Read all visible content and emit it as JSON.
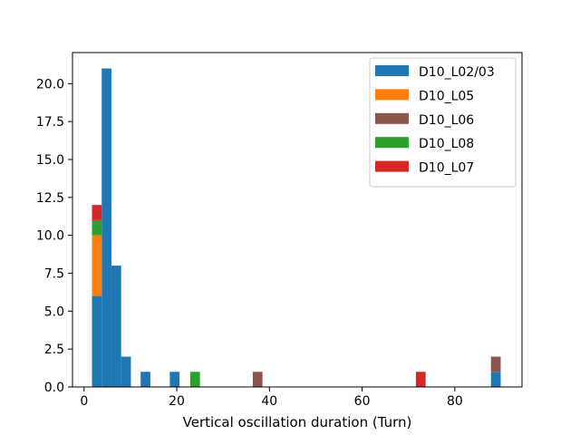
{
  "chart_data": {
    "type": "bar",
    "stacked": true,
    "title": "",
    "xlabel": "Vertical oscillation duration (Turn)",
    "ylabel": "",
    "xlim": [
      -2.5,
      94.5
    ],
    "ylim": [
      0,
      22.05
    ],
    "xticks": [
      0,
      20,
      40,
      60,
      80
    ],
    "xtick_labels": [
      "0",
      "20",
      "40",
      "60",
      "80"
    ],
    "yticks": [
      0,
      2.5,
      5,
      7.5,
      10,
      12.5,
      15,
      17.5,
      20
    ],
    "ytick_labels": [
      "0.0",
      "2.5",
      "5.0",
      "7.5",
      "10.0",
      "12.5",
      "15.0",
      "17.5",
      "20.0"
    ],
    "bin_width": 2.1,
    "grid": false,
    "legend_position": "top-right",
    "series": [
      {
        "name": "D10_L02/03",
        "color": "#1f77b4",
        "bins": [
          {
            "x0": 1.7,
            "count": 6
          },
          {
            "x0": 3.8,
            "count": 21
          },
          {
            "x0": 5.9,
            "count": 8
          },
          {
            "x0": 8.0,
            "count": 2
          },
          {
            "x0": 12.2,
            "count": 1
          },
          {
            "x0": 18.5,
            "count": 1
          },
          {
            "x0": 87.8,
            "count": 1
          }
        ]
      },
      {
        "name": "D10_L05",
        "color": "#ff7f0e",
        "bins": [
          {
            "x0": 1.7,
            "count": 4
          }
        ]
      },
      {
        "name": "D10_L06",
        "color": "#8c564b",
        "bins": [
          {
            "x0": 36.4,
            "count": 1
          },
          {
            "x0": 87.8,
            "count": 1
          }
        ]
      },
      {
        "name": "D10_L08",
        "color": "#2ca02c",
        "bins": [
          {
            "x0": 1.7,
            "count": 1
          },
          {
            "x0": 22.9,
            "count": 1
          }
        ]
      },
      {
        "name": "D10_L07",
        "color": "#d62728",
        "bins": [
          {
            "x0": 1.7,
            "count": 1
          },
          {
            "x0": 71.6,
            "count": 1
          }
        ]
      }
    ]
  }
}
